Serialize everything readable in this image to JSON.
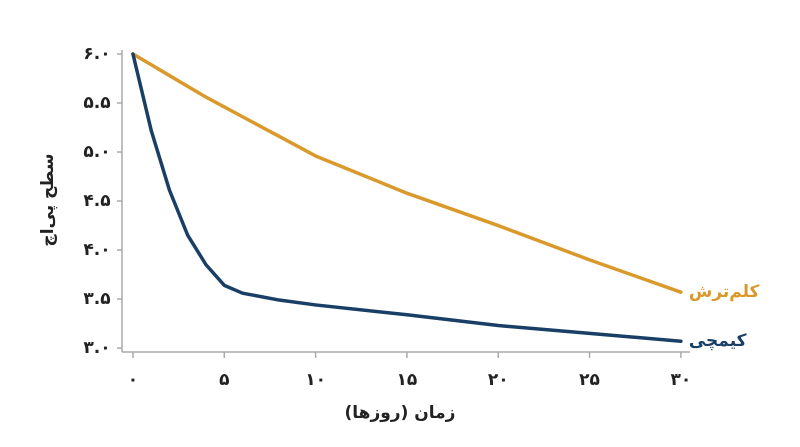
{
  "chart_data": {
    "type": "line",
    "x_label": "زمان (روزها)",
    "y_label": "سطح پی‌اچ",
    "x": [
      0,
      1,
      2,
      3,
      4,
      5,
      6,
      8,
      10,
      15,
      20,
      25,
      30
    ],
    "series": [
      {
        "name": "کلم‌ترش",
        "color": "#d99a2b",
        "values": [
          6.0,
          5.89,
          5.78,
          5.67,
          5.56,
          5.46,
          5.36,
          5.16,
          4.96,
          4.58,
          4.25,
          3.9,
          3.57
        ]
      },
      {
        "name": "کیمچی",
        "color": "#1a3f66",
        "values": [
          6.0,
          5.22,
          4.61,
          4.15,
          3.85,
          3.64,
          3.56,
          3.49,
          3.44,
          3.34,
          3.23,
          3.15,
          3.07
        ]
      }
    ],
    "xlim": [
      -0.6,
      30.5
    ],
    "ylim": [
      2.96,
      6.0
    ],
    "xticks": [
      {
        "value": 0,
        "label": "۰"
      },
      {
        "value": 5,
        "label": "۵"
      },
      {
        "value": 10,
        "label": "۱۰"
      },
      {
        "value": 15,
        "label": "۱۵"
      },
      {
        "value": 20,
        "label": "۲۰"
      },
      {
        "value": 25,
        "label": "۲۵"
      },
      {
        "value": 30,
        "label": "۳۰"
      }
    ],
    "yticks": [
      {
        "value": 3.0,
        "label": "۳.۰"
      },
      {
        "value": 3.5,
        "label": "۳.۵"
      },
      {
        "value": 4.0,
        "label": "۴.۰"
      },
      {
        "value": 4.5,
        "label": "۴.۵"
      },
      {
        "value": 5.0,
        "label": "۵.۰"
      },
      {
        "value": 5.5,
        "label": "۵.۵"
      },
      {
        "value": 6.0,
        "label": "۶.۰"
      }
    ],
    "grid": false
  }
}
